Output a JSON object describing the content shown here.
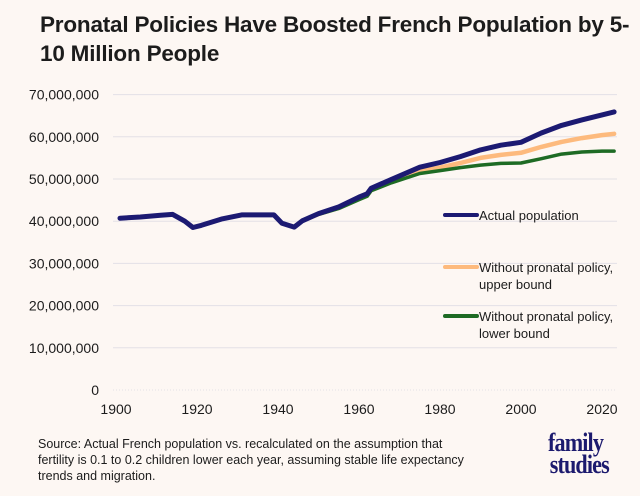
{
  "title": "Pronatal Policies Have Boosted French Population by 5-10 Million People",
  "source": "Source: Actual French population vs. recalculated on the assumption that fertility is 0.1 to 0.2 children lower each year, assuming stable life expectancy trends and migration.",
  "logo": {
    "line1": "family",
    "line2": "studies"
  },
  "chart_data": {
    "type": "line",
    "title": "Pronatal Policies Have Boosted French Population by 5-10 Million People",
    "xlabel": "",
    "ylabel": "",
    "xlim": [
      1900,
      2023
    ],
    "ylim": [
      0,
      70000000
    ],
    "grid": true,
    "legend_position": "right",
    "x_ticks": [
      1900,
      1920,
      1940,
      1960,
      1980,
      2000,
      2020
    ],
    "x_tick_labels": [
      "1900",
      "1920",
      "1940",
      "1960",
      "1980",
      "2000",
      "2020"
    ],
    "y_ticks": [
      0,
      10000000,
      20000000,
      30000000,
      40000000,
      50000000,
      60000000,
      70000000
    ],
    "y_tick_labels": [
      "0",
      "10,000,000",
      "20,000,000",
      "30,000,000",
      "40,000,000",
      "50,000,000",
      "60,000,000",
      "70,000,000"
    ],
    "series": [
      {
        "name": "Actual population",
        "color": "#1c1a72",
        "x": [
          1901,
          1906,
          1911,
          1914,
          1917,
          1919,
          1921,
          1926,
          1931,
          1936,
          1939,
          1941,
          1944,
          1946,
          1950,
          1955,
          1960,
          1962,
          1963,
          1968,
          1975,
          1980,
          1985,
          1990,
          1995,
          2000,
          2005,
          2010,
          2015,
          2020,
          2023
        ],
        "y": [
          40700000,
          41000000,
          41400000,
          41600000,
          40000000,
          38500000,
          39000000,
          40500000,
          41500000,
          41500000,
          41500000,
          39500000,
          38600000,
          40100000,
          41800000,
          43400000,
          45700000,
          46500000,
          47800000,
          49900000,
          52800000,
          53900000,
          55300000,
          56900000,
          58000000,
          58700000,
          60900000,
          62700000,
          64000000,
          65200000,
          65900000
        ]
      },
      {
        "name": "Without pronatal policy, upper bound",
        "color": "#fdba7d",
        "x": [
          1946,
          1950,
          1955,
          1960,
          1962,
          1963,
          1968,
          1975,
          1980,
          1985,
          1990,
          1995,
          2000,
          2005,
          2010,
          2015,
          2020,
          2023
        ],
        "y": [
          40100000,
          41700000,
          43200000,
          45400000,
          46200000,
          47500000,
          49500000,
          51900000,
          52700000,
          53800000,
          55000000,
          55700000,
          56200000,
          57600000,
          58800000,
          59700000,
          60400000,
          60700000
        ]
      },
      {
        "name": "Without pronatal policy, lower bound",
        "color": "#1e6b24",
        "x": [
          1946,
          1950,
          1955,
          1960,
          1962,
          1963,
          1968,
          1975,
          1980,
          1985,
          1990,
          1995,
          2000,
          2005,
          2010,
          2015,
          2020,
          2023
        ],
        "y": [
          40100000,
          41600000,
          43000000,
          45100000,
          45900000,
          47200000,
          49100000,
          51300000,
          52000000,
          52700000,
          53300000,
          53700000,
          53800000,
          54800000,
          55900000,
          56400000,
          56600000,
          56600000
        ]
      }
    ],
    "legend": [
      {
        "label_lines": [
          "Actual population"
        ],
        "color": "#1c1a72"
      },
      {
        "label_lines": [
          "Without pronatal policy,",
          "upper bound"
        ],
        "color": "#fdba7d"
      },
      {
        "label_lines": [
          "Without pronatal policy,",
          "lower bound"
        ],
        "color": "#1e6b24"
      }
    ]
  }
}
